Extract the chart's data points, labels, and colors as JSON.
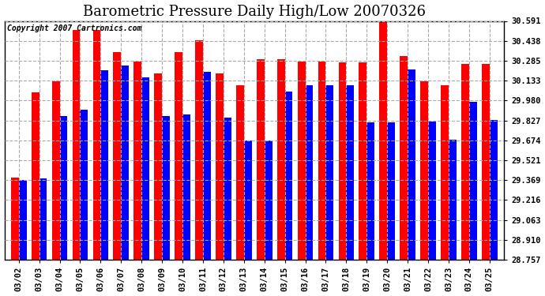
{
  "title": "Barometric Pressure Daily High/Low 20070326",
  "copyright": "Copyright 2007 Cartronics.com",
  "dates": [
    "03/02",
    "03/03",
    "03/04",
    "03/05",
    "03/06",
    "03/07",
    "03/08",
    "03/09",
    "03/10",
    "03/11",
    "03/12",
    "03/13",
    "03/14",
    "03/15",
    "03/16",
    "03/17",
    "03/18",
    "03/19",
    "03/20",
    "03/21",
    "03/22",
    "03/23",
    "03/24",
    "03/25"
  ],
  "highs": [
    29.39,
    30.04,
    30.13,
    30.52,
    30.52,
    30.35,
    30.28,
    30.19,
    30.35,
    30.44,
    30.19,
    30.1,
    30.3,
    30.3,
    30.28,
    30.28,
    30.27,
    30.27,
    30.6,
    30.32,
    30.13,
    30.1,
    30.26,
    30.26
  ],
  "lows": [
    29.37,
    29.38,
    29.86,
    29.91,
    30.21,
    30.25,
    30.16,
    29.86,
    29.87,
    30.2,
    29.85,
    29.67,
    29.67,
    30.05,
    30.1,
    30.1,
    30.1,
    29.81,
    29.81,
    30.22,
    29.82,
    29.68,
    29.97,
    29.83
  ],
  "high_color": "#ff0000",
  "low_color": "#0000ff",
  "bg_color": "#ffffff",
  "plot_bg_color": "#ffffff",
  "grid_color": "#aaaaaa",
  "yticks": [
    28.757,
    28.91,
    29.063,
    29.216,
    29.369,
    29.521,
    29.674,
    29.827,
    29.98,
    30.133,
    30.285,
    30.438,
    30.591
  ],
  "ymin": 28.757,
  "ymax": 30.591,
  "title_fontsize": 13,
  "tick_fontsize": 7.5,
  "copyright_fontsize": 7
}
